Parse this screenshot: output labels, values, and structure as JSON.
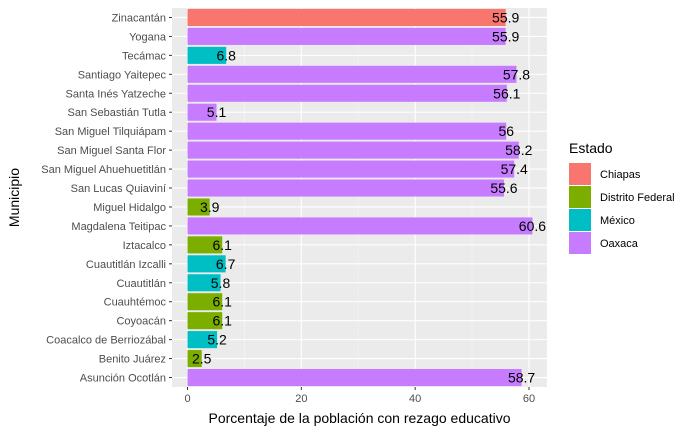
{
  "chart_data": {
    "type": "bar",
    "orientation": "horizontal",
    "xlabel": "Porcentaje de la población con rezago educativo",
    "ylabel": "Municipio",
    "xlim": [
      0,
      62.5
    ],
    "xticks": [
      "0",
      "20",
      "40",
      "60"
    ],
    "xtick_values": [
      0,
      20,
      40,
      60
    ],
    "grid": true,
    "legend": {
      "title": "Estado",
      "placement": "right",
      "entries": [
        {
          "name": "Chiapas",
          "color": "#F8766D"
        },
        {
          "name": "Distrito Federal",
          "color": "#7CAE00"
        },
        {
          "name": "México",
          "color": "#00BFC4"
        },
        {
          "name": "Oaxaca",
          "color": "#C77CFF"
        }
      ]
    },
    "bars": [
      {
        "category": "Zinacantán",
        "value": 55.9,
        "label": "55.9",
        "estado": "Chiapas"
      },
      {
        "category": "Yogana",
        "value": 55.9,
        "label": "55.9",
        "estado": "Oaxaca"
      },
      {
        "category": "Tecámac",
        "value": 6.8,
        "label": "6.8",
        "estado": "México"
      },
      {
        "category": "Santiago Yaitepec",
        "value": 57.8,
        "label": "57.8",
        "estado": "Oaxaca"
      },
      {
        "category": "Santa Inés Yatzeche",
        "value": 56.1,
        "label": "56.1",
        "estado": "Oaxaca"
      },
      {
        "category": "San Sebastián Tutla",
        "value": 5.1,
        "label": "5.1",
        "estado": "Oaxaca"
      },
      {
        "category": "San Miguel Tilquiápam",
        "value": 56,
        "label": "56",
        "estado": "Oaxaca"
      },
      {
        "category": "San Miguel Santa Flor",
        "value": 58.2,
        "label": "58.2",
        "estado": "Oaxaca"
      },
      {
        "category": "San Miguel Ahuehuetitlán",
        "value": 57.4,
        "label": "57.4",
        "estado": "Oaxaca"
      },
      {
        "category": "San Lucas Quiaviní",
        "value": 55.6,
        "label": "55.6",
        "estado": "Oaxaca"
      },
      {
        "category": "Miguel Hidalgo",
        "value": 3.9,
        "label": "3.9",
        "estado": "Distrito Federal"
      },
      {
        "category": "Magdalena Teitipac",
        "value": 60.6,
        "label": "60.6",
        "estado": "Oaxaca"
      },
      {
        "category": "Iztacalco",
        "value": 6.1,
        "label": "6.1",
        "estado": "Distrito Federal"
      },
      {
        "category": "Cuautitlán Izcalli",
        "value": 6.7,
        "label": "6.7",
        "estado": "México"
      },
      {
        "category": "Cuautitlán",
        "value": 5.8,
        "label": "5.8",
        "estado": "México"
      },
      {
        "category": "Cuauhtémoc",
        "value": 6.1,
        "label": "6.1",
        "estado": "Distrito Federal"
      },
      {
        "category": "Coyoacán",
        "value": 6.1,
        "label": "6.1",
        "estado": "Distrito Federal"
      },
      {
        "category": "Coacalco de Berriozábal",
        "value": 5.2,
        "label": "5.2",
        "estado": "México"
      },
      {
        "category": "Benito Juárez",
        "value": 2.5,
        "label": "2.5",
        "estado": "Distrito Federal"
      },
      {
        "category": "Asunción Ocotlán",
        "value": 58.7,
        "label": "58.7",
        "estado": "Oaxaca"
      }
    ]
  }
}
